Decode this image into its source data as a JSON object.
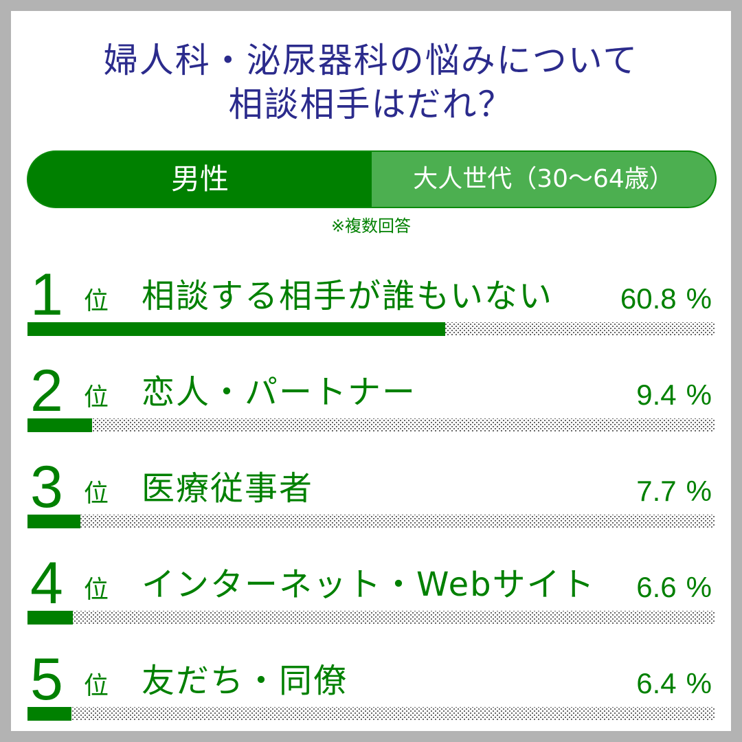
{
  "title": {
    "line1": "婦人科・泌尿器科の悩みについて",
    "line2": "相談相手はだれ？"
  },
  "header": {
    "gender": "男性",
    "age_group": "大人世代（30〜64歳）"
  },
  "note": "※複数回答",
  "rank_unit": "位",
  "percent_sign": "%",
  "colors": {
    "title": "#2b2b8c",
    "accent": "#008000",
    "accent_light": "#4caf50",
    "frame": "#b3b3b3"
  },
  "chart_data": {
    "type": "bar",
    "orientation": "horizontal",
    "categories": [
      "相談する相手が誰もいない",
      "恋人・パートナー",
      "医療従事者",
      "インターネット・Webサイト",
      "友だち・同僚"
    ],
    "ranks": [
      "1",
      "2",
      "3",
      "4",
      "5"
    ],
    "values": [
      60.8,
      9.4,
      7.7,
      6.6,
      6.4
    ],
    "value_labels": [
      "60.8",
      "9.4",
      "7.7",
      "6.6",
      "6.4"
    ],
    "unit": "%",
    "xlim": [
      0,
      100
    ],
    "title": "婦人科・泌尿器科の悩みについて 相談相手はだれ？",
    "xlabel": "",
    "ylabel": "",
    "grid": false,
    "legend": "none"
  }
}
